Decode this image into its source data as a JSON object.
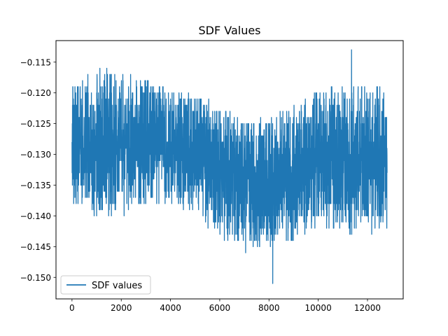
{
  "chart_data": {
    "type": "line",
    "title": "SDF Values",
    "xlabel": "",
    "ylabel": "",
    "xlim": [
      -650,
      13450
    ],
    "ylim": [
      -0.1535,
      -0.1115
    ],
    "xticks": [
      0,
      2000,
      4000,
      6000,
      8000,
      10000,
      12000
    ],
    "xtick_labels": [
      "0",
      "2000",
      "4000",
      "6000",
      "8000",
      "10000",
      "12000"
    ],
    "yticks": [
      -0.115,
      -0.12,
      -0.125,
      -0.13,
      -0.135,
      -0.14,
      -0.145,
      -0.15
    ],
    "ytick_labels": [
      "−0.115",
      "−0.120",
      "−0.125",
      "−0.130",
      "−0.135",
      "−0.140",
      "−0.145",
      "−0.150"
    ],
    "grid": false,
    "legend_position": "lower-left",
    "n_points": 12800,
    "series": [
      {
        "name": "SDF values",
        "color": "#1f77b4",
        "trend_x": [
          0,
          1000,
          2000,
          3000,
          4000,
          5000,
          6000,
          7000,
          8000,
          9000,
          10000,
          11000,
          12000,
          12800
        ],
        "trend_y": [
          -0.1285,
          -0.1285,
          -0.1285,
          -0.1285,
          -0.129,
          -0.1305,
          -0.132,
          -0.1335,
          -0.1345,
          -0.1335,
          -0.132,
          -0.131,
          -0.1305,
          -0.1305
        ],
        "upper_y": [
          -0.118,
          -0.116,
          -0.117,
          -0.118,
          -0.119,
          -0.12,
          -0.122,
          -0.124,
          -0.124,
          -0.122,
          -0.119,
          -0.118,
          -0.119,
          -0.119
        ],
        "lower_y": [
          -0.139,
          -0.14,
          -0.14,
          -0.138,
          -0.138,
          -0.14,
          -0.144,
          -0.146,
          -0.145,
          -0.144,
          -0.142,
          -0.143,
          -0.143,
          -0.142
        ],
        "min_point": {
          "x": 8150,
          "y": -0.151
        },
        "max_point": {
          "x": 11350,
          "y": -0.113
        }
      }
    ]
  }
}
